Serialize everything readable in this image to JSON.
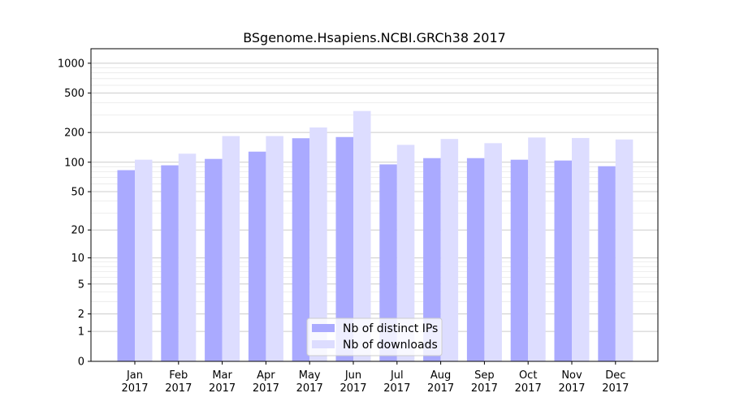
{
  "chart_data": {
    "type": "bar",
    "title": "BSgenome.Hsapiens.NCBI.GRCh38 2017",
    "xlabel": "",
    "ylabel": "",
    "yscale": "log1p",
    "ylim": [
      0,
      1400
    ],
    "grid": true,
    "legend_position": "bottom-center",
    "categories": [
      "Jan\n2017",
      "Feb\n2017",
      "Mar\n2017",
      "Apr\n2017",
      "May\n2017",
      "Jun\n2017",
      "Jul\n2017",
      "Aug\n2017",
      "Sep\n2017",
      "Oct\n2017",
      "Nov\n2017",
      "Dec\n2017"
    ],
    "category_labels": [
      {
        "month": "Jan",
        "year": "2017"
      },
      {
        "month": "Feb",
        "year": "2017"
      },
      {
        "month": "Mar",
        "year": "2017"
      },
      {
        "month": "Apr",
        "year": "2017"
      },
      {
        "month": "May",
        "year": "2017"
      },
      {
        "month": "Jun",
        "year": "2017"
      },
      {
        "month": "Jul",
        "year": "2017"
      },
      {
        "month": "Aug",
        "year": "2017"
      },
      {
        "month": "Sep",
        "year": "2017"
      },
      {
        "month": "Oct",
        "year": "2017"
      },
      {
        "month": "Nov",
        "year": "2017"
      },
      {
        "month": "Dec",
        "year": "2017"
      }
    ],
    "y_ticks": [
      0,
      1,
      2,
      5,
      10,
      20,
      50,
      100,
      200,
      500,
      1000
    ],
    "series": [
      {
        "name": "Nb of distinct IPs",
        "color": "#aaaaff",
        "values": [
          83,
          93,
          108,
          128,
          175,
          180,
          95,
          110,
          110,
          106,
          104,
          91
        ]
      },
      {
        "name": "Nb of downloads",
        "color": "#ddddff",
        "values": [
          106,
          122,
          184,
          184,
          225,
          330,
          150,
          172,
          156,
          178,
          176,
          170
        ]
      }
    ]
  }
}
